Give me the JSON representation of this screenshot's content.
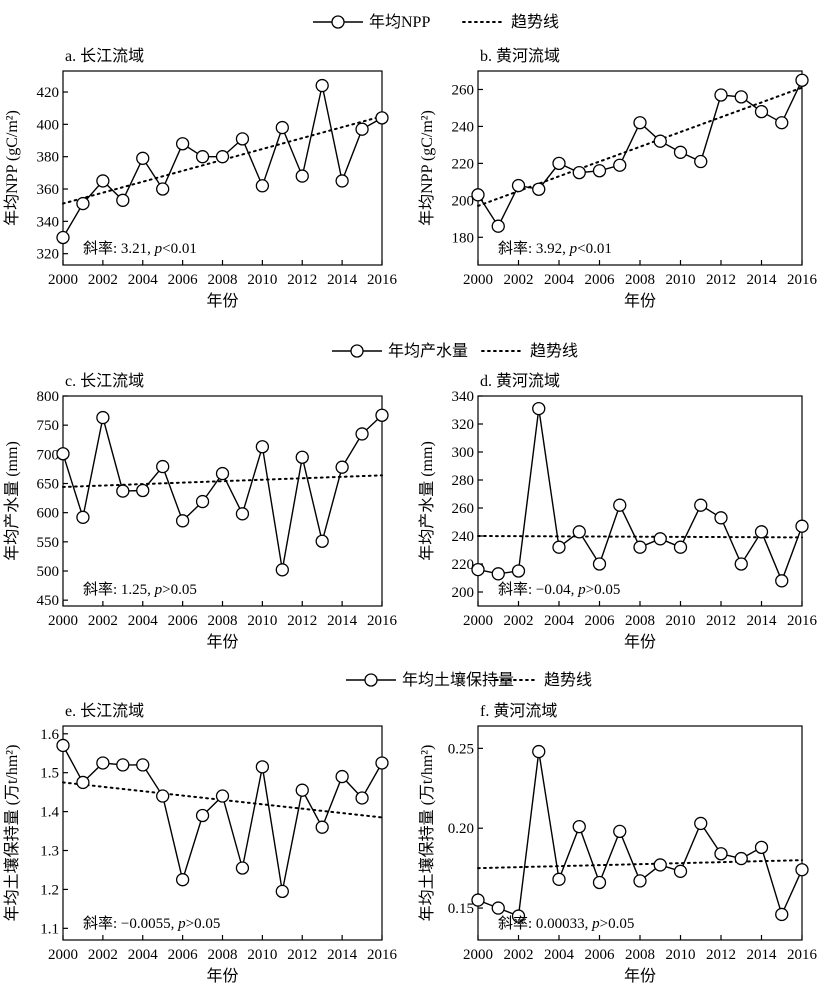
{
  "legend_groups": [
    {
      "series_label": "年均NPP",
      "trend_label": "趋势线"
    },
    {
      "series_label": "年均产水量",
      "trend_label": "趋势线"
    },
    {
      "series_label": "年均土壤保持量",
      "trend_label": "趋势线"
    }
  ],
  "chart_data": [
    {
      "type": "line",
      "title": "a. 长江流域",
      "xlabel": "年份",
      "ylabel": "年均NPP (gC/m²)",
      "x": [
        2000,
        2001,
        2002,
        2003,
        2004,
        2005,
        2006,
        2007,
        2008,
        2009,
        2010,
        2011,
        2012,
        2013,
        2014,
        2015,
        2016
      ],
      "xticks": [
        "2000",
        "2002",
        "2004",
        "2006",
        "2008",
        "2010",
        "2012",
        "2014",
        "2016"
      ],
      "yticks": [
        "320",
        "340",
        "360",
        "380",
        "400",
        "420"
      ],
      "ylim": [
        313,
        433
      ],
      "series": [
        {
          "values": [
            330,
            351,
            365,
            353,
            379,
            360,
            388,
            380,
            380,
            391,
            362,
            398,
            368,
            424,
            365,
            397,
            404
          ]
        }
      ],
      "trend": {
        "start": 351,
        "end": 405
      },
      "slope_text": "斜率: 3.21, ",
      "slope_p": "p",
      "slope_cond": "<0.01"
    },
    {
      "type": "line",
      "title": "b. 黄河流域",
      "xlabel": "年份",
      "ylabel": "年均NPP (gC/m²)",
      "x": [
        2000,
        2001,
        2002,
        2003,
        2004,
        2005,
        2006,
        2007,
        2008,
        2009,
        2010,
        2011,
        2012,
        2013,
        2014,
        2015,
        2016
      ],
      "xticks": [
        "2000",
        "2002",
        "2004",
        "2006",
        "2008",
        "2010",
        "2012",
        "2014",
        "2016"
      ],
      "yticks": [
        "180",
        "200",
        "220",
        "240",
        "260"
      ],
      "ylim": [
        165,
        270
      ],
      "series": [
        {
          "values": [
            203,
            186,
            208,
            206,
            220,
            215,
            216,
            219,
            242,
            232,
            226,
            221,
            257,
            256,
            248,
            242,
            265
          ]
        }
      ],
      "trend": {
        "start": 197,
        "end": 261
      },
      "slope_text": "斜率: 3.92, ",
      "slope_p": "p",
      "slope_cond": "<0.01"
    },
    {
      "type": "line",
      "title": "c. 长江流域",
      "xlabel": "年份",
      "ylabel": "年均产水量 (mm)",
      "x": [
        2000,
        2001,
        2002,
        2003,
        2004,
        2005,
        2006,
        2007,
        2008,
        2009,
        2010,
        2011,
        2012,
        2013,
        2014,
        2015,
        2016
      ],
      "xticks": [
        "2000",
        "2002",
        "2004",
        "2006",
        "2008",
        "2010",
        "2012",
        "2014",
        "2016"
      ],
      "yticks": [
        "450",
        "500",
        "550",
        "600",
        "650",
        "700",
        "750",
        "800"
      ],
      "ylim": [
        440,
        800
      ],
      "series": [
        {
          "values": [
            701,
            592,
            763,
            637,
            638,
            679,
            586,
            619,
            667,
            598,
            713,
            502,
            695,
            551,
            678,
            735,
            767
          ]
        }
      ],
      "trend": {
        "start": 644,
        "end": 664
      },
      "slope_text": "斜率: 1.25, ",
      "slope_p": "p",
      "slope_cond": ">0.05"
    },
    {
      "type": "line",
      "title": "d. 黄河流域",
      "xlabel": "年份",
      "ylabel": "年均产水量 (mm)",
      "x": [
        2000,
        2001,
        2002,
        2003,
        2004,
        2005,
        2006,
        2007,
        2008,
        2009,
        2010,
        2011,
        2012,
        2013,
        2014,
        2015,
        2016
      ],
      "xticks": [
        "2000",
        "2002",
        "2004",
        "2006",
        "2008",
        "2010",
        "2012",
        "2014",
        "2016"
      ],
      "yticks": [
        "200",
        "220",
        "240",
        "260",
        "280",
        "300",
        "320",
        "340"
      ],
      "ylim": [
        190,
        340
      ],
      "series": [
        {
          "values": [
            216,
            213,
            215,
            331,
            232,
            243,
            220,
            262,
            232,
            238,
            232,
            262,
            253,
            220,
            243,
            208,
            247
          ]
        }
      ],
      "trend": {
        "start": 240,
        "end": 239
      },
      "slope_text": "斜率: −0.04, ",
      "slope_p": "p",
      "slope_cond": ">0.05"
    },
    {
      "type": "line",
      "title": "e. 长江流域",
      "xlabel": "年份",
      "ylabel": "年均土壤保持量 (万t/hm²)",
      "x": [
        2000,
        2001,
        2002,
        2003,
        2004,
        2005,
        2006,
        2007,
        2008,
        2009,
        2010,
        2011,
        2012,
        2013,
        2014,
        2015,
        2016
      ],
      "xticks": [
        "2000",
        "2002",
        "2004",
        "2006",
        "2008",
        "2010",
        "2012",
        "2014",
        "2016"
      ],
      "yticks": [
        "1.1",
        "1.2",
        "1.3",
        "1.4",
        "1.5",
        "1.6"
      ],
      "ylim": [
        1.07,
        1.62
      ],
      "series": [
        {
          "values": [
            1.57,
            1.475,
            1.525,
            1.52,
            1.52,
            1.44,
            1.225,
            1.39,
            1.44,
            1.255,
            1.515,
            1.195,
            1.455,
            1.36,
            1.49,
            1.435,
            1.525
          ]
        }
      ],
      "trend": {
        "start": 1.475,
        "end": 1.385
      },
      "slope_text": "斜率: −0.0055, ",
      "slope_p": "p",
      "slope_cond": ">0.05"
    },
    {
      "type": "line",
      "title": "f. 黄河流域",
      "xlabel": "年份",
      "ylabel": "年均土壤保持量 (万t/hm²)",
      "x": [
        2000,
        2001,
        2002,
        2003,
        2004,
        2005,
        2006,
        2007,
        2008,
        2009,
        2010,
        2011,
        2012,
        2013,
        2014,
        2015,
        2016
      ],
      "xticks": [
        "2000",
        "2002",
        "2004",
        "2006",
        "2008",
        "2010",
        "2012",
        "2014",
        "2016"
      ],
      "yticks": [
        "0.15",
        "0.20",
        "0.25"
      ],
      "ylim": [
        0.13,
        0.264
      ],
      "series": [
        {
          "values": [
            0.155,
            0.15,
            0.145,
            0.248,
            0.168,
            0.201,
            0.166,
            0.198,
            0.167,
            0.177,
            0.173,
            0.203,
            0.184,
            0.181,
            0.188,
            0.146,
            0.174
          ]
        }
      ],
      "trend": {
        "start": 0.175,
        "end": 0.18
      },
      "slope_text": "斜率: 0.00033, ",
      "slope_p": "p",
      "slope_cond": ">0.05"
    }
  ]
}
